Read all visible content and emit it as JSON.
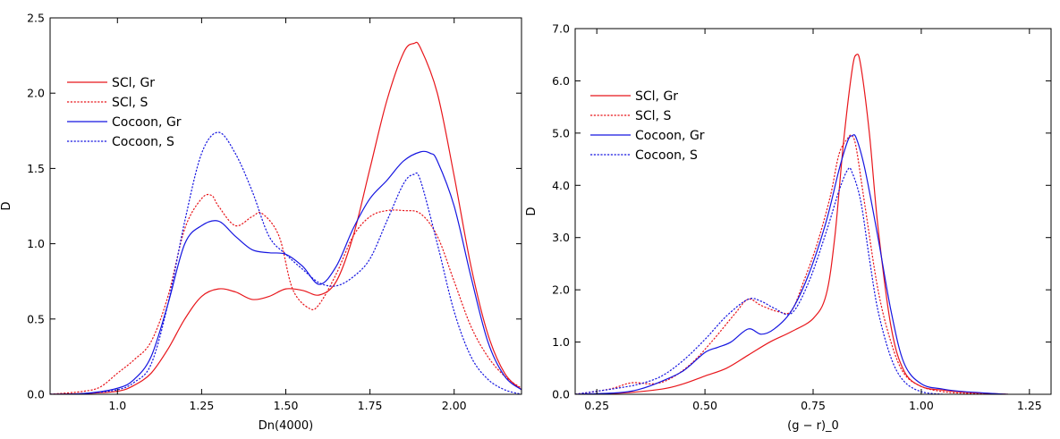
{
  "chart_data": [
    {
      "type": "line",
      "title": "",
      "xlabel": "Dn(4000)",
      "ylabel": "D",
      "xlim": [
        0.8,
        2.2
      ],
      "ylim": [
        0,
        2.5
      ],
      "xticks": [
        1.0,
        1.25,
        1.5,
        1.75,
        2.0
      ],
      "xtick_labels": [
        "1.0",
        "1.25",
        "1.50",
        "1.75",
        "2.00"
      ],
      "yticks": [
        0,
        0.5,
        1.0,
        1.5,
        2.0,
        2.5
      ],
      "ytick_labels": [
        "0.0",
        "0.5",
        "1.0",
        "1.5",
        "2.0",
        "2.5"
      ],
      "grid": false,
      "legend": "top-left",
      "series": [
        {
          "name": "SCl, Gr",
          "color": "#e8161b",
          "dash": "solid",
          "x": [
            0.8,
            0.9,
            1.0,
            1.05,
            1.1,
            1.15,
            1.2,
            1.25,
            1.3,
            1.35,
            1.4,
            1.45,
            1.5,
            1.55,
            1.6,
            1.65,
            1.7,
            1.75,
            1.8,
            1.85,
            1.88,
            1.9,
            1.95,
            2.0,
            2.05,
            2.1,
            2.15,
            2.2
          ],
          "y": [
            0.0,
            0.005,
            0.02,
            0.06,
            0.14,
            0.3,
            0.5,
            0.65,
            0.7,
            0.68,
            0.63,
            0.65,
            0.7,
            0.69,
            0.66,
            0.75,
            1.05,
            1.5,
            1.95,
            2.27,
            2.33,
            2.3,
            2.0,
            1.45,
            0.85,
            0.4,
            0.14,
            0.03
          ]
        },
        {
          "name": "SCl, S",
          "color": "#e8161b",
          "dash": "dotted",
          "x": [
            0.8,
            0.9,
            0.95,
            1.0,
            1.05,
            1.1,
            1.15,
            1.2,
            1.25,
            1.28,
            1.3,
            1.35,
            1.4,
            1.43,
            1.48,
            1.52,
            1.57,
            1.6,
            1.65,
            1.7,
            1.75,
            1.8,
            1.85,
            1.9,
            1.95,
            2.0,
            2.05,
            2.1,
            2.15,
            2.2
          ],
          "y": [
            0.0,
            0.02,
            0.05,
            0.14,
            0.23,
            0.35,
            0.65,
            1.1,
            1.3,
            1.32,
            1.25,
            1.12,
            1.18,
            1.2,
            1.05,
            0.7,
            0.57,
            0.6,
            0.8,
            1.05,
            1.18,
            1.22,
            1.22,
            1.2,
            1.05,
            0.75,
            0.45,
            0.25,
            0.12,
            0.04
          ]
        },
        {
          "name": "Cocoon, Gr",
          "color": "#1515e0",
          "dash": "solid",
          "x": [
            0.8,
            0.9,
            1.0,
            1.05,
            1.1,
            1.15,
            1.2,
            1.25,
            1.3,
            1.35,
            1.4,
            1.45,
            1.5,
            1.55,
            1.6,
            1.65,
            1.7,
            1.75,
            1.8,
            1.85,
            1.9,
            1.93,
            1.95,
            2.0,
            2.05,
            2.1,
            2.15,
            2.2
          ],
          "y": [
            0.0,
            0.005,
            0.04,
            0.1,
            0.25,
            0.6,
            1.0,
            1.12,
            1.15,
            1.05,
            0.96,
            0.94,
            0.93,
            0.85,
            0.73,
            0.85,
            1.1,
            1.3,
            1.42,
            1.55,
            1.61,
            1.6,
            1.55,
            1.25,
            0.78,
            0.35,
            0.12,
            0.03
          ]
        },
        {
          "name": "Cocoon, S",
          "color": "#1515e0",
          "dash": "dotted",
          "x": [
            0.8,
            0.9,
            1.0,
            1.05,
            1.1,
            1.15,
            1.2,
            1.25,
            1.3,
            1.35,
            1.4,
            1.45,
            1.5,
            1.55,
            1.6,
            1.65,
            1.7,
            1.75,
            1.8,
            1.85,
            1.88,
            1.9,
            1.95,
            2.0,
            2.05,
            2.1,
            2.15,
            2.2
          ],
          "y": [
            0.0,
            0.005,
            0.03,
            0.08,
            0.2,
            0.6,
            1.15,
            1.6,
            1.74,
            1.6,
            1.35,
            1.05,
            0.93,
            0.83,
            0.74,
            0.72,
            0.78,
            0.9,
            1.15,
            1.4,
            1.46,
            1.42,
            1.0,
            0.55,
            0.25,
            0.1,
            0.03,
            0.0
          ]
        }
      ]
    },
    {
      "type": "line",
      "title": "",
      "xlabel": "(g − r)_0",
      "ylabel": "D",
      "xlim": [
        0.2,
        1.3
      ],
      "ylim": [
        0,
        7.0
      ],
      "xticks": [
        0.25,
        0.5,
        0.75,
        1.0,
        1.25
      ],
      "xtick_labels": [
        "0.25",
        "0.50",
        "0.75",
        "1.00",
        "1.25"
      ],
      "yticks": [
        0,
        1,
        2,
        3,
        4,
        5,
        6,
        7
      ],
      "ytick_labels": [
        "0.0",
        "1.0",
        "2.0",
        "3.0",
        "4.0",
        "5.0",
        "6.0",
        "7.0"
      ],
      "grid": false,
      "legend": "top-left",
      "series": [
        {
          "name": "SCl, Gr",
          "color": "#e8161b",
          "dash": "solid",
          "x": [
            0.2,
            0.3,
            0.4,
            0.45,
            0.5,
            0.55,
            0.6,
            0.65,
            0.7,
            0.75,
            0.78,
            0.8,
            0.82,
            0.84,
            0.85,
            0.86,
            0.88,
            0.9,
            0.93,
            0.96,
            1.0,
            1.05,
            1.1,
            1.2
          ],
          "y": [
            0.0,
            0.02,
            0.1,
            0.2,
            0.35,
            0.5,
            0.75,
            1.0,
            1.2,
            1.45,
            1.9,
            3.0,
            4.8,
            6.2,
            6.5,
            6.3,
            5.0,
            3.2,
            1.3,
            0.45,
            0.15,
            0.08,
            0.04,
            0.0
          ]
        },
        {
          "name": "SCl, S",
          "color": "#e8161b",
          "dash": "dotted",
          "x": [
            0.2,
            0.28,
            0.33,
            0.38,
            0.42,
            0.47,
            0.52,
            0.57,
            0.6,
            0.63,
            0.67,
            0.7,
            0.73,
            0.76,
            0.79,
            0.81,
            0.83,
            0.84,
            0.85,
            0.87,
            0.9,
            0.93,
            0.96,
            1.0,
            1.05,
            1.1,
            1.2
          ],
          "y": [
            0.0,
            0.1,
            0.22,
            0.2,
            0.3,
            0.6,
            1.05,
            1.55,
            1.82,
            1.7,
            1.58,
            1.6,
            2.2,
            2.9,
            3.8,
            4.6,
            4.9,
            4.95,
            4.7,
            3.6,
            2.0,
            1.0,
            0.4,
            0.15,
            0.05,
            0.02,
            0.0
          ]
        },
        {
          "name": "Cocoon, Gr",
          "color": "#1515e0",
          "dash": "solid",
          "x": [
            0.2,
            0.3,
            0.35,
            0.4,
            0.45,
            0.5,
            0.53,
            0.56,
            0.6,
            0.63,
            0.66,
            0.7,
            0.74,
            0.78,
            0.81,
            0.83,
            0.84,
            0.85,
            0.87,
            0.9,
            0.93,
            0.96,
            1.0,
            1.05,
            1.1,
            1.2
          ],
          "y": [
            0.0,
            0.03,
            0.1,
            0.25,
            0.45,
            0.8,
            0.9,
            1.0,
            1.25,
            1.15,
            1.25,
            1.6,
            2.3,
            3.3,
            4.3,
            4.85,
            4.95,
            4.9,
            4.3,
            3.0,
            1.6,
            0.6,
            0.2,
            0.1,
            0.05,
            0.0
          ]
        },
        {
          "name": "Cocoon, S",
          "color": "#1515e0",
          "dash": "dotted",
          "x": [
            0.2,
            0.3,
            0.35,
            0.4,
            0.45,
            0.5,
            0.55,
            0.6,
            0.63,
            0.66,
            0.7,
            0.74,
            0.78,
            0.81,
            0.83,
            0.84,
            0.86,
            0.88,
            0.9,
            0.93,
            0.96,
            1.0,
            1.05
          ],
          "y": [
            0.0,
            0.12,
            0.2,
            0.35,
            0.65,
            1.05,
            1.5,
            1.82,
            1.78,
            1.65,
            1.55,
            2.15,
            3.1,
            3.9,
            4.3,
            4.25,
            3.7,
            2.6,
            1.6,
            0.7,
            0.25,
            0.05,
            0.0
          ]
        }
      ]
    }
  ]
}
